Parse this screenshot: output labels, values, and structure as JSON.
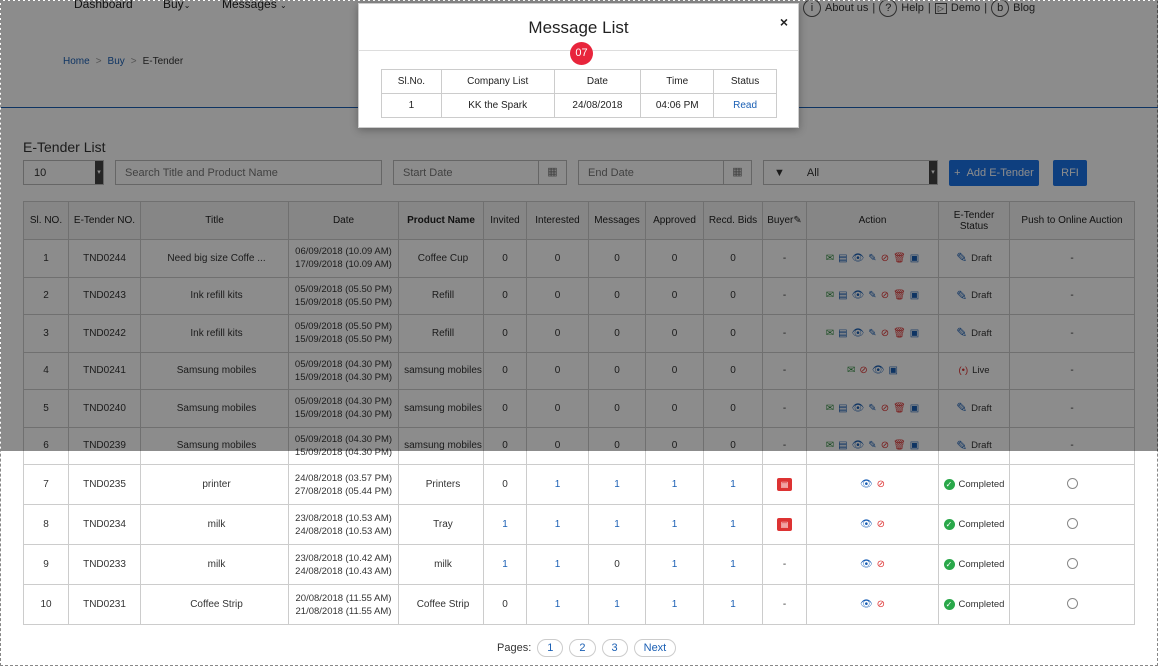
{
  "nav": {
    "dashboard": "Dashboard",
    "buy": "Buy",
    "messages": "Messages"
  },
  "toplinks": {
    "about": "About us",
    "help": "Help",
    "demo": "Demo",
    "blog": "Blog"
  },
  "breadcrumb": {
    "home": "Home",
    "buy": "Buy",
    "current": "E-Tender"
  },
  "page_title": "E-Tender List",
  "filters": {
    "page_size": "10",
    "search_placeholder": "Search Title and Product Name",
    "start_placeholder": "Start Date",
    "end_placeholder": "End Date",
    "status": "All"
  },
  "buttons": {
    "add": "Add E-Tender",
    "rfi": "RFI"
  },
  "columns": [
    "Sl. NO.",
    "E-Tender NO.",
    "Title",
    "Date",
    "Product Name",
    "Invited",
    "Interested",
    "Messages",
    "Approved",
    "Recd. Bids",
    "Buyer",
    "Action",
    "E-Tender Status",
    "Push to Online Auction"
  ],
  "rows": [
    {
      "sl": "1",
      "no": "TND0244",
      "title": "Need big size Coffe ...",
      "d1": "06/09/2018 (10.09 AM)",
      "d2": "17/09/2018 (10.09 AM)",
      "product": "Coffee Cup",
      "invited": "0",
      "interested": "0",
      "messages": "0",
      "approved": "0",
      "bids": "0",
      "buyer": "-",
      "status": "Draft",
      "push": "-"
    },
    {
      "sl": "2",
      "no": "TND0243",
      "title": "Ink refill kits",
      "d1": "05/09/2018 (05.50 PM)",
      "d2": "15/09/2018 (05.50 PM)",
      "product": "Refill",
      "invited": "0",
      "interested": "0",
      "messages": "0",
      "approved": "0",
      "bids": "0",
      "buyer": "-",
      "status": "Draft",
      "push": "-"
    },
    {
      "sl": "3",
      "no": "TND0242",
      "title": "Ink refill kits",
      "d1": "05/09/2018 (05.50 PM)",
      "d2": "15/09/2018 (05.50 PM)",
      "product": "Refill",
      "invited": "0",
      "interested": "0",
      "messages": "0",
      "approved": "0",
      "bids": "0",
      "buyer": "-",
      "status": "Draft",
      "push": "-"
    },
    {
      "sl": "4",
      "no": "TND0241",
      "title": "Samsung mobiles",
      "d1": "05/09/2018 (04.30 PM)",
      "d2": "15/09/2018 (04.30 PM)",
      "product": "samsung mobiles",
      "invited": "0",
      "interested": "0",
      "messages": "0",
      "approved": "0",
      "bids": "0",
      "buyer": "-",
      "status": "Live",
      "push": "-"
    },
    {
      "sl": "5",
      "no": "TND0240",
      "title": "Samsung mobiles",
      "d1": "05/09/2018 (04.30 PM)",
      "d2": "15/09/2018 (04.30 PM)",
      "product": "samsung mobiles",
      "invited": "0",
      "interested": "0",
      "messages": "0",
      "approved": "0",
      "bids": "0",
      "buyer": "-",
      "status": "Draft",
      "push": "-"
    },
    {
      "sl": "6",
      "no": "TND0239",
      "title": "Samsung mobiles",
      "d1": "05/09/2018 (04.30 PM)",
      "d2": "15/09/2018 (04.30 PM)",
      "product": "samsung mobiles",
      "invited": "0",
      "interested": "0",
      "messages": "0",
      "approved": "0",
      "bids": "0",
      "buyer": "-",
      "status": "Draft",
      "push": "-"
    },
    {
      "sl": "7",
      "no": "TND0235",
      "title": "printer",
      "d1": "24/08/2018 (03.57 PM)",
      "d2": "27/08/2018 (05.44 PM)",
      "product": "Printers",
      "invited": "0",
      "interested": "1",
      "messages": "1",
      "approved": "1",
      "bids": "1",
      "buyer": "",
      "status": "Completed",
      "push": ""
    },
    {
      "sl": "8",
      "no": "TND0234",
      "title": "milk",
      "d1": "23/08/2018 (10.53 AM)",
      "d2": "24/08/2018 (10.53 AM)",
      "product": "Tray",
      "invited": "1",
      "interested": "1",
      "messages": "1",
      "approved": "1",
      "bids": "1",
      "buyer": "",
      "status": "Completed",
      "push": ""
    },
    {
      "sl": "9",
      "no": "TND0233",
      "title": "milk",
      "d1": "23/08/2018 (10.42 AM)",
      "d2": "24/08/2018 (10.43 AM)",
      "product": "milk",
      "invited": "1",
      "interested": "1",
      "messages": "0",
      "approved": "1",
      "bids": "1",
      "buyer": "-",
      "status": "Completed",
      "push": ""
    },
    {
      "sl": "10",
      "no": "TND0231",
      "title": "Coffee Strip",
      "d1": "20/08/2018 (11.55 AM)",
      "d2": "21/08/2018 (11.55 AM)",
      "product": "Coffee Strip",
      "invited": "0",
      "interested": "1",
      "messages": "1",
      "approved": "1",
      "bids": "1",
      "buyer": "-",
      "status": "Completed",
      "push": ""
    }
  ],
  "pagination": {
    "label": "Pages:",
    "p1": "1",
    "p2": "2",
    "p3": "3",
    "next": "Next"
  },
  "modal": {
    "title": "Message List",
    "close": "×",
    "count": "07",
    "columns": [
      "Sl.No.",
      "Company List",
      "Date",
      "Time",
      "Status"
    ],
    "row": {
      "sl": "1",
      "company": "KK the Spark",
      "date": "24/08/2018",
      "time": "04:06 PM",
      "status": "Read"
    }
  },
  "colors": {
    "accent": "#1a73e8",
    "link": "#1a5fb4",
    "badge": "#e8253c",
    "completed": "#2aa84a"
  }
}
